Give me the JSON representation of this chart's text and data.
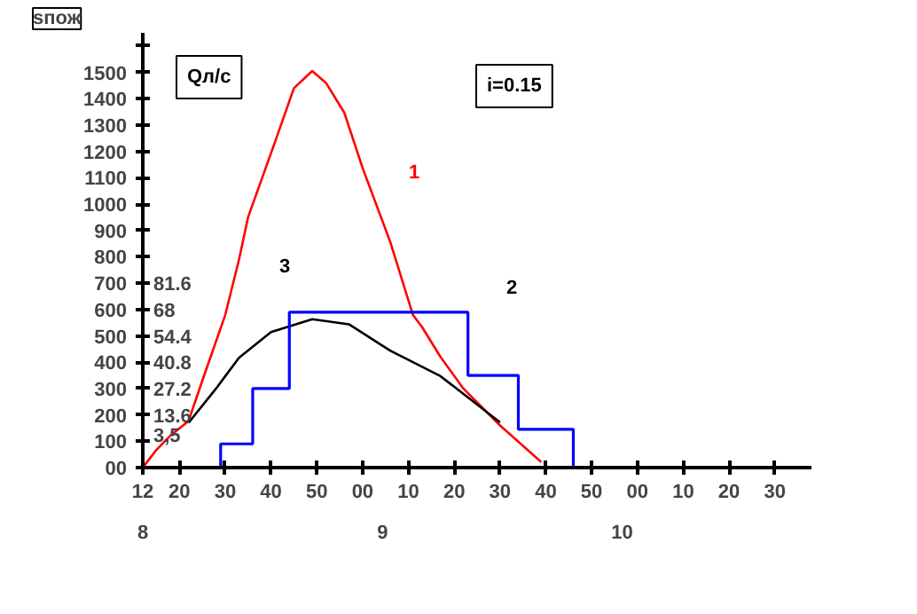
{
  "chart_data": {
    "type": "line",
    "ylabel": "sпож",
    "y2label": "Qл/с",
    "xlim": [
      "2000-01-01T08:12",
      "2000-01-01T10:38"
    ],
    "ylim": [
      0,
      1650
    ],
    "x2lim": [
      8,
      10.79
    ],
    "x2ticks": [
      8,
      9,
      10
    ],
    "xticks": [
      {
        "value": "2000-01-01T08:12",
        "label": "12"
      },
      {
        "value": "2000-01-01T08:20",
        "label": "20"
      },
      {
        "value": "2000-01-01T08:30",
        "label": "30"
      },
      {
        "value": "2000-01-01T08:40",
        "label": "40"
      },
      {
        "value": "2000-01-01T08:50",
        "label": "50"
      },
      {
        "value": "2000-01-01T09:00",
        "label": "00"
      },
      {
        "value": "2000-01-01T09:10",
        "label": "10"
      },
      {
        "value": "2000-01-01T09:20",
        "label": "20"
      },
      {
        "value": "2000-01-01T09:30",
        "label": "30"
      },
      {
        "value": "2000-01-01T09:40",
        "label": "40"
      },
      {
        "value": "2000-01-01T09:50",
        "label": "50"
      },
      {
        "value": "2000-01-01T10:00",
        "label": "00"
      },
      {
        "value": "2000-01-01T10:10",
        "label": "10"
      },
      {
        "value": "2000-01-01T10:20",
        "label": "20"
      },
      {
        "value": "2000-01-01T10:30",
        "label": "30"
      }
    ],
    "yticks": [
      {
        "value": 0,
        "label": "00"
      },
      100,
      200,
      300,
      400,
      500,
      600,
      700,
      800,
      900,
      1000,
      1100,
      1200,
      1300,
      1400,
      1500,
      {
        "value": 1600,
        "label": null
      }
    ],
    "y2lim": [
      -13.6,
      210.8
    ],
    "y2ticks": [
      {
        "value": 3.5,
        "label": "3,5"
      },
      13.6,
      27.2,
      40.8,
      54.4,
      68,
      81.6
    ],
    "series": [
      {
        "color": "#ff0000",
        "x": [
          "2000-01-01T08:12",
          "2000-01-01T08:15",
          "2000-01-01T08:18",
          "2000-01-01T08:22",
          "2000-01-01T08:25",
          "2000-01-01T08:30",
          "2000-01-01T08:33",
          "2000-01-01T08:35",
          "2000-01-01T08:41",
          "2000-01-01T08:45",
          "2000-01-01T08:49",
          "2000-01-01T08:52",
          "2000-01-01T08:56",
          "2000-01-01T09:00",
          "2000-01-01T09:06",
          "2000-01-01T09:11",
          "2000-01-01T09:13",
          "2000-01-01T09:17",
          "2000-01-01T09:22",
          "2000-01-01T09:30",
          "2000-01-01T09:39"
        ],
        "values": [
          0,
          68,
          121,
          177,
          330,
          579,
          789,
          951,
          1242,
          1440,
          1505,
          1460,
          1347,
          1137,
          858,
          579,
          533,
          420,
          300,
          160,
          21
        ]
      },
      {
        "color": "#000000",
        "x": [
          "2000-01-01T08:22",
          "2000-01-01T08:28",
          "2000-01-01T08:33",
          "2000-01-01T08:40",
          "2000-01-01T08:49",
          "2000-01-01T08:57",
          "2000-01-01T09:06",
          "2000-01-01T09:17",
          "2000-01-01T09:30"
        ],
        "values": [
          170,
          300,
          417,
          514,
          563,
          544,
          444,
          347,
          172
        ]
      },
      {
        "type": "step",
        "color": "#0000ff",
        "x": [
          "2000-01-01T08:29",
          "2000-01-01T08:29",
          "2000-01-01T08:36",
          "2000-01-01T08:44",
          "2000-01-01T09:23",
          "2000-01-01T09:34",
          "2000-01-01T09:46"
        ],
        "values": [
          0,
          90,
          300,
          590,
          350,
          145,
          0
        ]
      }
    ],
    "annotations": [
      "1",
      "3",
      "2",
      "i=0.15"
    ],
    "grid": false
  }
}
